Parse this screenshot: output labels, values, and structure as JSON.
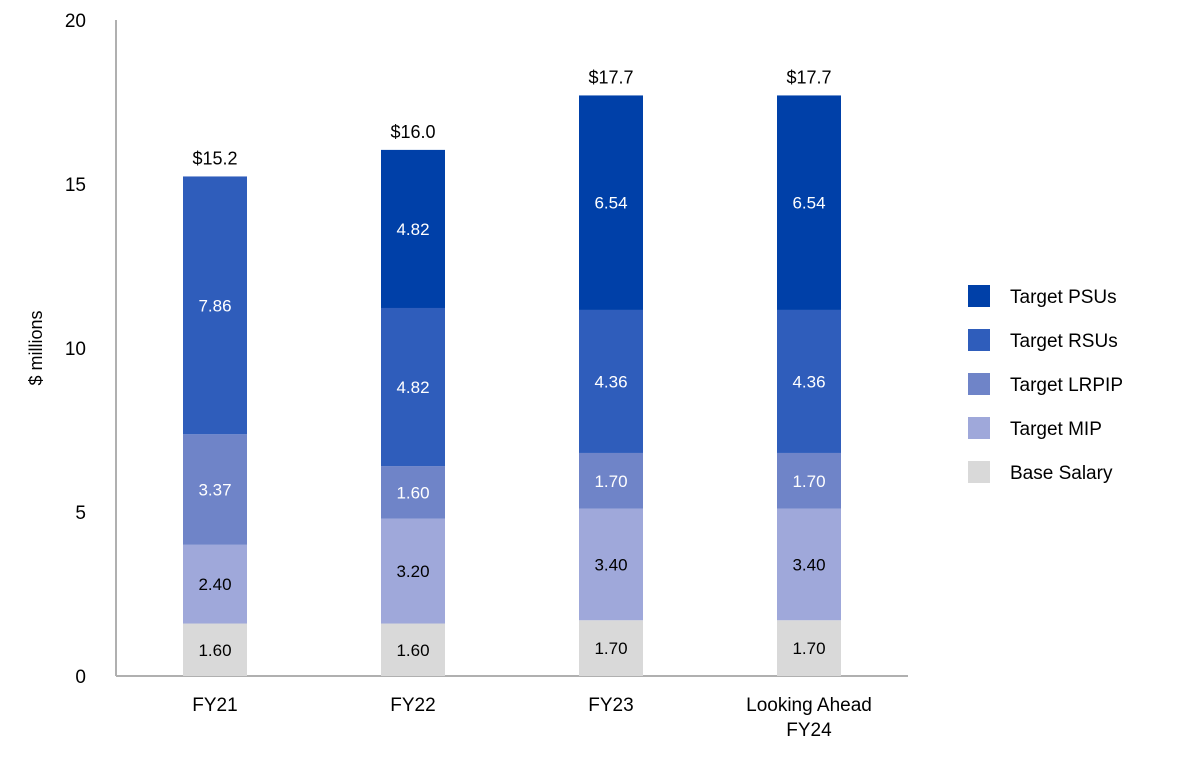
{
  "chart_data": {
    "type": "bar",
    "stacked": true,
    "title": "",
    "xlabel": "",
    "ylabel": "$ millions",
    "ylim": [
      0,
      20
    ],
    "yticks": [
      "0",
      "5",
      "10",
      "15",
      "20"
    ],
    "categories": [
      [
        "FY21"
      ],
      [
        "FY22"
      ],
      [
        "FY23"
      ],
      [
        "Looking Ahead",
        "FY24"
      ]
    ],
    "totals": [
      "$15.2",
      "$16.0",
      "$17.7",
      "$17.7"
    ],
    "series": [
      {
        "name": "Base Salary",
        "color": "#d9d9d9",
        "label_color": "#000000",
        "values": [
          1.6,
          1.6,
          1.7,
          1.7
        ],
        "labels": [
          "1.60",
          "1.60",
          "1.70",
          "1.70"
        ]
      },
      {
        "name": "Target MIP",
        "color": "#9fa8da",
        "label_color": "#000000",
        "values": [
          2.4,
          3.2,
          3.4,
          3.4
        ],
        "labels": [
          "2.40",
          "3.20",
          "3.40",
          "3.40"
        ]
      },
      {
        "name": "Target LRPIP",
        "color": "#6f84c8",
        "label_color": "#ffffff",
        "values": [
          3.37,
          1.6,
          1.7,
          1.7
        ],
        "labels": [
          "3.37",
          "1.60",
          "1.70",
          "1.70"
        ]
      },
      {
        "name": "Target RSUs",
        "color": "#2f5dbb",
        "label_color": "#ffffff",
        "values": [
          7.86,
          4.82,
          4.36,
          4.36
        ],
        "labels": [
          "7.86",
          "4.82",
          "4.36",
          "4.36"
        ]
      },
      {
        "name": "Target PSUs",
        "color": "#0040a8",
        "label_color": "#ffffff",
        "values": [
          0,
          4.82,
          6.54,
          6.54
        ],
        "labels": [
          "",
          "4.82",
          "6.54",
          "6.54"
        ]
      }
    ],
    "legend_order": [
      "Target PSUs",
      "Target RSUs",
      "Target LRPIP",
      "Target MIP",
      "Base Salary"
    ],
    "legend_position": "right",
    "grid": false
  }
}
